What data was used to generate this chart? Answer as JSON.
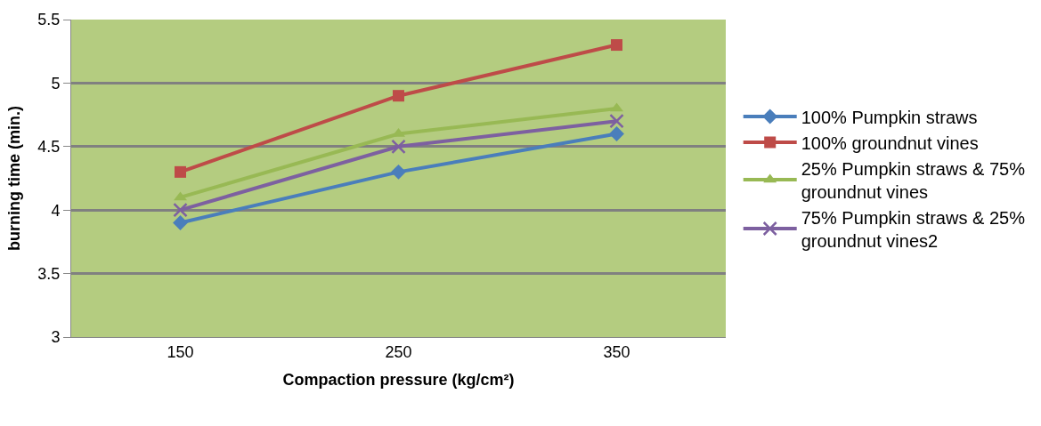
{
  "chart_data": {
    "type": "line",
    "xlabel": "Compaction pressure (kg/cm²)",
    "ylabel": "burning time (min.)",
    "categories": [
      "150",
      "250",
      "350"
    ],
    "ylim": [
      3,
      5.5
    ],
    "yticks": [
      3,
      3.5,
      4,
      4.5,
      5,
      5.5
    ],
    "grid": "y",
    "legend": "right",
    "line_style": "solid",
    "series": [
      {
        "name": "100% Pumpkin straws",
        "color": "#4a7ebb",
        "marker": "diamond",
        "values": [
          3.9,
          4.3,
          4.6
        ]
      },
      {
        "name": "100% groundnut vines",
        "color": "#be4b48",
        "marker": "square",
        "values": [
          4.3,
          4.9,
          5.3
        ]
      },
      {
        "name": "25% Pumpkin straws & 75% groundnut vines",
        "color": "#98b954",
        "marker": "triangle",
        "values": [
          4.1,
          4.6,
          4.8
        ]
      },
      {
        "name": "75% Pumpkin straws & 25% groundnut vines2",
        "color": "#7d60a0",
        "marker": "cross",
        "values": [
          4.0,
          4.5,
          4.7
        ]
      }
    ]
  }
}
